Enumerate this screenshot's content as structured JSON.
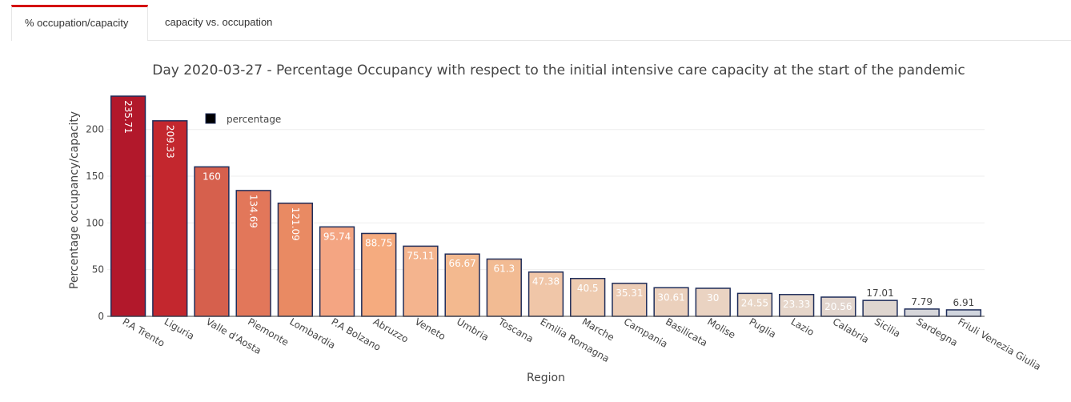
{
  "tabs": [
    {
      "label": "% occupation/capacity",
      "active": true
    },
    {
      "label": "capacity vs. occupation",
      "active": false
    }
  ],
  "colors": {
    "tab_accent": "#d40000",
    "bar_outline": "#1f2d5a",
    "grid": "#eeeeee"
  },
  "chart_data": {
    "type": "bar",
    "title": "Day 2020-03-27 - Percentage Occupancy with respect to the initial intensive care capacity at the start of the pandemic",
    "xlabel": "Region",
    "ylabel": "Percentage occupancy/capacity",
    "ylim": [
      0,
      236
    ],
    "yticks": [
      0,
      50,
      100,
      150,
      200
    ],
    "grid": true,
    "legend": {
      "label": "percentage",
      "placement": "top-left",
      "color": "#000000"
    },
    "categories": [
      "P.A Trento",
      "Liguria",
      "Valle d'Aosta",
      "Piemonte",
      "Lombardia",
      "P.A Bolzano",
      "Abruzzo",
      "Veneto",
      "Umbria",
      "Toscana",
      "Emilia Romagna",
      "Marche",
      "Campania",
      "Basilicata",
      "Molise",
      "Puglia",
      "Lazio",
      "Calabria",
      "Sicilia",
      "Sardegna",
      "Friuli Venezia Giulia"
    ],
    "values": [
      235.71,
      209.33,
      160,
      134.69,
      121.09,
      95.74,
      88.75,
      75.11,
      66.67,
      61.3,
      47.38,
      40.5,
      35.31,
      30.61,
      30,
      24.55,
      23.33,
      20.56,
      17.01,
      7.79,
      6.91
    ],
    "data_labels": [
      "235.71",
      "209.33",
      "160",
      "134.69",
      "121.09",
      "95.74",
      "88.75",
      "75.11",
      "66.67",
      "61.3",
      "47.38",
      "40.5",
      "35.31",
      "30.61",
      "30",
      "24.55",
      "23.33",
      "20.56",
      "17.01",
      "7.79",
      "6.91"
    ],
    "bar_colors": [
      "#b2182b",
      "#c3272e",
      "#d6604d",
      "#e2775a",
      "#e98a63",
      "#f4a582",
      "#f5ab7f",
      "#f4b48e",
      "#f3b98f",
      "#f2bb93",
      "#f0c6a8",
      "#eecbb0",
      "#ecccb5",
      "#ebd0bc",
      "#ead3c2",
      "#e8d5c5",
      "#e6d6ca",
      "#e2d5cd",
      "#dfd6d0",
      "#d6d6da",
      "#d0d5de"
    ]
  }
}
